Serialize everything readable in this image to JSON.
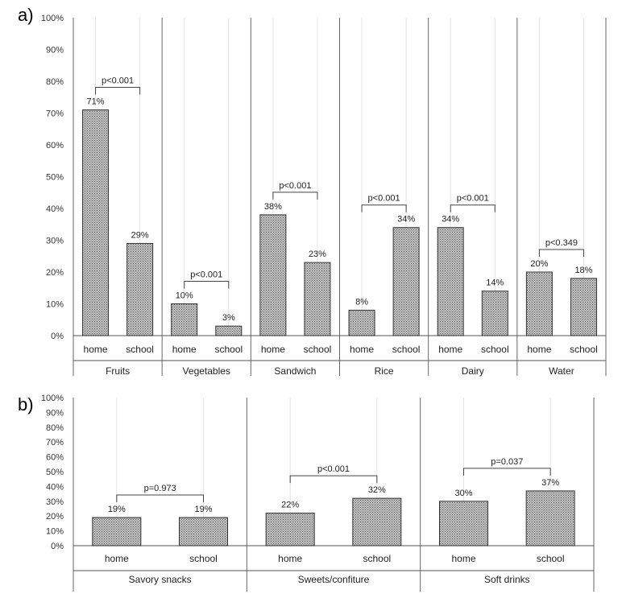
{
  "chart_data": [
    {
      "panel": "a)",
      "type": "bar",
      "bar_labels": [
        "home",
        "school"
      ],
      "groups": [
        {
          "name": "Fruits",
          "values": [
            71,
            29
          ],
          "labels": [
            "71%",
            "29%"
          ],
          "pvalue": "p<0.001"
        },
        {
          "name": "Vegetables",
          "values": [
            10,
            3
          ],
          "labels": [
            "10%",
            "3%"
          ],
          "pvalue": "p<0.001"
        },
        {
          "name": "Sandwich",
          "values": [
            38,
            23
          ],
          "labels": [
            "38%",
            "23%"
          ],
          "pvalue": "p<0.001"
        },
        {
          "name": "Rice",
          "values": [
            8,
            34
          ],
          "labels": [
            "8%",
            "34%"
          ],
          "pvalue": "p<0.001"
        },
        {
          "name": "Dairy",
          "values": [
            34,
            14
          ],
          "labels": [
            "34%",
            "14%"
          ],
          "pvalue": "p<0.001"
        },
        {
          "name": "Water",
          "values": [
            20,
            18
          ],
          "labels": [
            "20%",
            "18%"
          ],
          "pvalue": "p<0.349"
        }
      ],
      "ylim": [
        0,
        100
      ],
      "yticks": [
        "0%",
        "10%",
        "20%",
        "30%",
        "40%",
        "50%",
        "60%",
        "70%",
        "80%",
        "90%",
        "100%"
      ],
      "grid": "vertical",
      "bar_fill": "#bbbbbb"
    },
    {
      "panel": "b)",
      "type": "bar",
      "bar_labels": [
        "home",
        "school"
      ],
      "groups": [
        {
          "name": "Savory snacks",
          "values": [
            19,
            19
          ],
          "labels": [
            "19%",
            "19%"
          ],
          "pvalue": "p=0.973"
        },
        {
          "name": "Sweets/confiture",
          "values": [
            22,
            32
          ],
          "labels": [
            "22%",
            "32%"
          ],
          "pvalue": "p<0.001"
        },
        {
          "name": "Soft drinks",
          "values": [
            30,
            37
          ],
          "labels": [
            "30%",
            "37%"
          ],
          "pvalue": "p=0.037"
        }
      ],
      "ylim": [
        0,
        100
      ],
      "yticks": [
        "0%",
        "10%",
        "20%",
        "30%",
        "40%",
        "50%",
        "60%",
        "70%",
        "80%",
        "90%",
        "100%"
      ],
      "grid": "vertical",
      "bar_fill": "#bbbbbb"
    }
  ]
}
